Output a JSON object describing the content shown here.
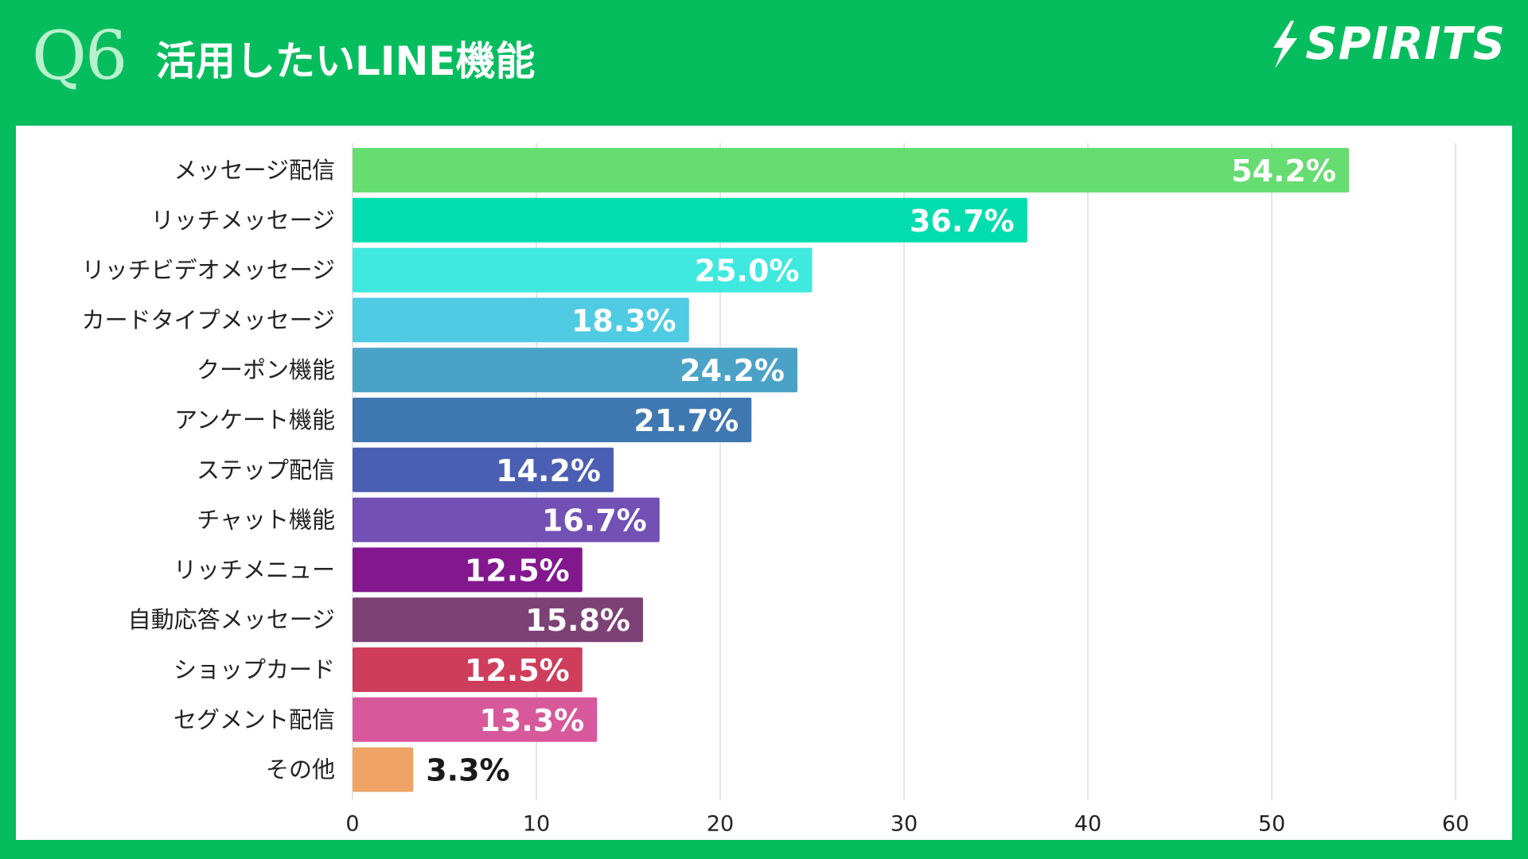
{
  "header": {
    "question": "Q6",
    "title": "活用したいLINE機能",
    "brand": "SPIRITS"
  },
  "chart_data": {
    "type": "bar",
    "orientation": "horizontal",
    "categories": [
      "メッセージ配信",
      "リッチメッセージ",
      "リッチビデオメッセージ",
      "カードタイプメッセージ",
      "クーポン機能",
      "アンケート機能",
      "ステップ配信",
      "チャット機能",
      "リッチメニュー",
      "自動応答メッセージ",
      "ショップカード",
      "セグメント配信",
      "その他"
    ],
    "values": [
      54.2,
      36.7,
      25.0,
      18.3,
      24.2,
      21.7,
      14.2,
      16.7,
      12.5,
      15.8,
      12.5,
      13.3,
      3.3
    ],
    "data_labels": [
      "54.2%",
      "36.7%",
      "25.0%",
      "18.3%",
      "24.2%",
      "21.7%",
      "14.2%",
      "16.7%",
      "12.5%",
      "15.8%",
      "12.5%",
      "13.3%",
      "3.3%"
    ],
    "colors": [
      "#66dc71",
      "#03dcae",
      "#3fe9e0",
      "#4fcbe3",
      "#4aa2c7",
      "#3f77b1",
      "#4a5fb3",
      "#7250b4",
      "#83178e",
      "#7d4176",
      "#cf3d5c",
      "#d7599b",
      "#efa366"
    ],
    "xlim": [
      0,
      60
    ],
    "xticks": [
      0,
      10,
      20,
      30,
      40,
      50,
      60
    ],
    "grid": true,
    "title": "",
    "xlabel": "",
    "ylabel": ""
  }
}
